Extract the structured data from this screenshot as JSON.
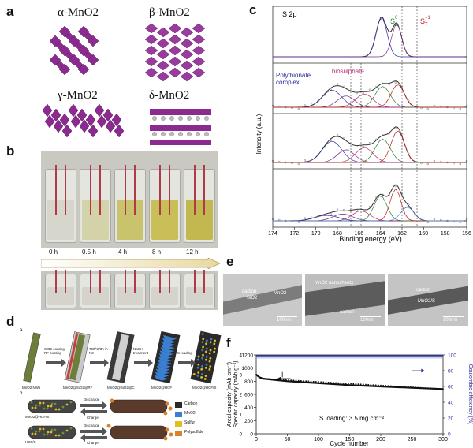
{
  "panel_labels": {
    "a": "a",
    "b": "b",
    "c": "c",
    "d": "d",
    "e": "e",
    "f": "f"
  },
  "panel_a": {
    "structures": [
      {
        "name": "α-MnO2"
      },
      {
        "name": "β-MnO2"
      },
      {
        "name": "γ-MnO2"
      },
      {
        "name": "δ-MnO2"
      }
    ],
    "color": "#8b2a8f"
  },
  "panel_b": {
    "times": [
      "0 h",
      "0.5 h",
      "4 h",
      "8 h",
      "12 h"
    ]
  },
  "panel_c": {
    "title": "S 2p",
    "ylabel": "Intensity (a.u.)",
    "xlabel": "Binding energy (eV)",
    "xticks": [
      "174",
      "172",
      "170",
      "168",
      "166",
      "164",
      "162",
      "160",
      "158",
      "156"
    ],
    "annotations": {
      "sb": "S",
      "sb_super": "0",
      "sb_sub": "B",
      "st": "S",
      "st_super": "−1",
      "st_sub": "T",
      "polythionate_1": "Polythionate",
      "polythionate_2": "complex",
      "thiosulphate": "Thiosulphate"
    }
  },
  "panel_d": {
    "sub_a": "a",
    "sub_b": "b",
    "steps": [
      "SiO2 coating, RF coating",
      "700°C/3h in N2",
      "NaOH treatment",
      "S loading"
    ],
    "materials": [
      "MnO2 NWs",
      "MnO2@SiO2@RF",
      "MnO2@SiO2@C",
      "MnO2@HCF",
      "MnO2@HCF/S"
    ],
    "row_b_labels": [
      "MnO2@HCF/S",
      "HCF/S"
    ],
    "arrows": [
      "Discharge",
      "Charge"
    ],
    "legend": [
      {
        "label": "Carbon",
        "color": "#2a2a2a"
      },
      {
        "label": "MnO2",
        "color": "#3b7fd0"
      },
      {
        "label": "Sulfur",
        "color": "#e0c020"
      },
      {
        "label": "Polysulfide",
        "color": "#d9822b"
      }
    ]
  },
  "panel_e": {
    "img1": {
      "labels": [
        "carbon",
        "SiO2",
        "MnO2"
      ],
      "scale": "100nm"
    },
    "img2": {
      "labels": [
        "MnO2 nanosheets",
        "carbon"
      ],
      "scale": "100nm"
    },
    "img3": {
      "labels": [
        "carbon",
        "MnO2/S"
      ],
      "scale": "100nm"
    }
  },
  "panel_f": {
    "ylabel_left_1": "Areal capacity (mAh cm⁻²)",
    "ylabel_left_2": "Specific capacity (mAh g⁻¹)",
    "ylabel_right": "Coulombic efficiency (%)",
    "xlabel": "Cycle number",
    "annotation": "S loading: 3.5 mg cm⁻²",
    "left_ticks": [
      "0",
      "200",
      "400",
      "600",
      "800",
      "1000",
      "1200"
    ],
    "right_ticks": [
      "0",
      "20",
      "40",
      "60",
      "80",
      "100"
    ],
    "x_ticks": [
      "0",
      "50",
      "100",
      "150",
      "200",
      "250",
      "300"
    ],
    "areal_ticks": [
      "0",
      "1",
      "2",
      "3",
      "4"
    ]
  },
  "chart_data": [
    {
      "type": "line",
      "xlabel": "Binding energy (eV)",
      "ylabel": "Intensity (a.u.)",
      "xlim": [
        174,
        156
      ],
      "x": [
        174,
        172,
        170,
        168,
        166,
        164,
        162,
        160,
        158,
        156
      ]
    },
    {
      "type": "line",
      "xlabel": "Cycle number",
      "ylabel": "Specific capacity (mAh g⁻¹)",
      "xlim": [
        0,
        300
      ],
      "ylim": [
        0,
        1200
      ],
      "series": [
        {
          "x": [
            0,
            5,
            10,
            50,
            100,
            150,
            200,
            250,
            300
          ],
          "values": [
            900,
            860,
            840,
            800,
            770,
            740,
            720,
            700,
            680
          ]
        },
        {
          "x": [
            0,
            50,
            100,
            150,
            200,
            250,
            300
          ],
          "values": [
            99,
            99,
            99,
            99,
            99,
            99,
            99
          ]
        }
      ],
      "y2lim": [
        0,
        100
      ]
    }
  ]
}
